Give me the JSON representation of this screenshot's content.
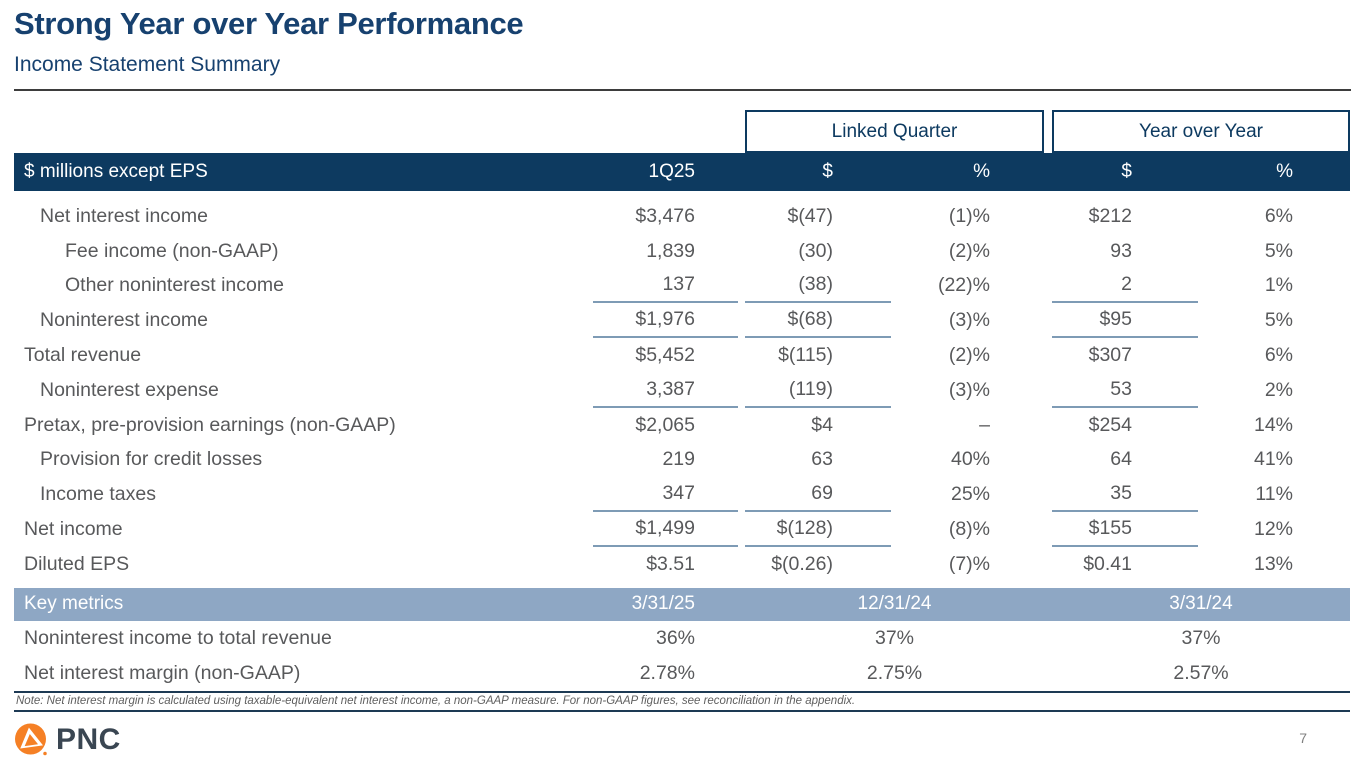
{
  "page": {
    "title": "Strong Year over Year Performance",
    "subtitle": "Income Statement Summary",
    "note": "Note: Net interest margin is calculated using taxable-equivalent net interest income, a non-GAAP measure. For non-GAAP figures, see reconciliation in the appendix.",
    "page_number": "7",
    "logo_text": "PNC"
  },
  "colors": {
    "navy": "#0D3A60",
    "title_navy": "#17416F",
    "key_metrics_bar": "#8EA7C4",
    "underline": "#7E9BB5",
    "body_text": "#58595B",
    "logo_orange": "#F58025"
  },
  "table": {
    "group_headers": [
      "Linked Quarter",
      "Year over Year"
    ],
    "header": {
      "label": "$ millions except EPS",
      "cols": [
        "1Q25",
        "$",
        "%",
        "$",
        "%"
      ]
    },
    "rows": [
      {
        "label": "Net interest income",
        "indent": 1,
        "underline": false,
        "values": [
          "$3,476",
          "$(47)",
          "(1)%",
          "$212",
          "6%"
        ]
      },
      {
        "label": "Fee income (non-GAAP)",
        "indent": 2,
        "underline": false,
        "values": [
          "1,839",
          "(30)",
          "(2)%",
          "93",
          "5%"
        ]
      },
      {
        "label": "Other noninterest income",
        "indent": 2,
        "underline": true,
        "values": [
          "137",
          "(38)",
          "(22)%",
          "2",
          "1%"
        ]
      },
      {
        "label": "Noninterest income",
        "indent": 1,
        "underline": true,
        "values": [
          "$1,976",
          "$(68)",
          "(3)%",
          "$95",
          "5%"
        ]
      },
      {
        "label": "Total revenue",
        "indent": 0,
        "underline": false,
        "values": [
          "$5,452",
          "$(115)",
          "(2)%",
          "$307",
          "6%"
        ]
      },
      {
        "label": "Noninterest expense",
        "indent": 1,
        "underline": true,
        "values": [
          "3,387",
          "(119)",
          "(3)%",
          "53",
          "2%"
        ]
      },
      {
        "label": "Pretax, pre-provision earnings (non-GAAP)",
        "indent": 0,
        "underline": false,
        "values": [
          "$2,065",
          "$4",
          "–",
          "$254",
          "14%"
        ]
      },
      {
        "label": "Provision for credit losses",
        "indent": 1,
        "underline": false,
        "values": [
          "219",
          "63",
          "40%",
          "64",
          "41%"
        ]
      },
      {
        "label": "Income taxes",
        "indent": 1,
        "underline": true,
        "values": [
          "347",
          "69",
          "25%",
          "35",
          "11%"
        ]
      },
      {
        "label": "Net income",
        "indent": 0,
        "underline": true,
        "values": [
          "$1,499",
          "$(128)",
          "(8)%",
          "$155",
          "12%"
        ]
      },
      {
        "label": "Diluted EPS",
        "indent": 0,
        "underline": false,
        "values": [
          "$3.51",
          "$(0.26)",
          "(7)%",
          "$0.41",
          "13%"
        ]
      }
    ],
    "key_metrics": {
      "label": "Key metrics",
      "dates": [
        "3/31/25",
        "12/31/24",
        "3/31/24"
      ],
      "rows": [
        {
          "label": "Noninterest income to total revenue",
          "values": [
            "36%",
            "37%",
            "37%"
          ]
        },
        {
          "label": "Net interest margin (non-GAAP)",
          "values": [
            "2.78%",
            "2.75%",
            "2.57%"
          ]
        }
      ]
    }
  }
}
